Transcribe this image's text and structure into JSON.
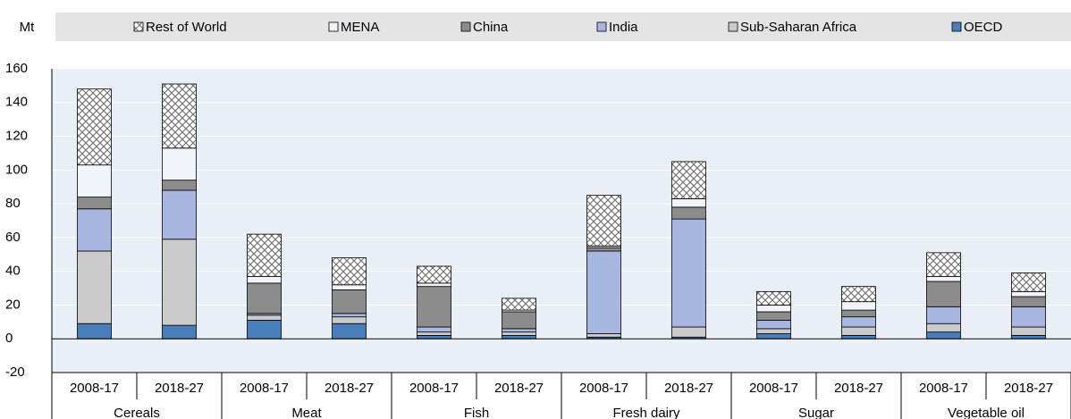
{
  "chart_data": {
    "type": "stacked_bar",
    "y_axis_label": "Mt",
    "groups": [
      "Cereals",
      "Meat",
      "Fish",
      "Fresh dairy",
      "Sugar",
      "Vegetable oil"
    ],
    "categories": [
      "2008-17",
      "2018-27",
      "2008-17",
      "2018-27",
      "2008-17",
      "2018-27",
      "2008-17",
      "2018-27",
      "2008-17",
      "2018-27",
      "2008-17",
      "2018-27"
    ],
    "series": [
      {
        "name": "OECD",
        "color": "#4a7ebb",
        "values": [
          9,
          8,
          11,
          9,
          2,
          2,
          1,
          1,
          3,
          2,
          4,
          2
        ]
      },
      {
        "name": "Sub-Saharan Africa",
        "color": "#cbcbcb",
        "values": [
          43,
          51,
          3,
          4,
          2,
          2,
          2,
          6,
          3,
          5,
          5,
          5
        ]
      },
      {
        "name": "India",
        "color": "#a7b7e2",
        "values": [
          25,
          29,
          1,
          2,
          3,
          2,
          49,
          64,
          5,
          6,
          10,
          12
        ]
      },
      {
        "name": "China",
        "color": "#8c8c8c",
        "values": [
          7,
          6,
          18,
          14,
          24,
          10,
          2,
          7,
          5,
          4,
          15,
          6
        ]
      },
      {
        "name": "MENA",
        "color": "#f2f4fb",
        "values": [
          19,
          19,
          4,
          3,
          2,
          1,
          1,
          5,
          4,
          5,
          3,
          3
        ]
      },
      {
        "name": "Rest of World",
        "color": "#ffffff",
        "pattern": "crosshatch",
        "values": [
          45,
          38,
          25,
          16,
          10,
          7,
          30,
          22,
          8,
          9,
          14,
          11
        ]
      }
    ],
    "legend_order": "reversed",
    "legend_position": "top",
    "ylim": [
      -20,
      160
    ],
    "yticks": [
      -20,
      0,
      20,
      40,
      60,
      80,
      100,
      120,
      140,
      160
    ],
    "grid": true
  }
}
